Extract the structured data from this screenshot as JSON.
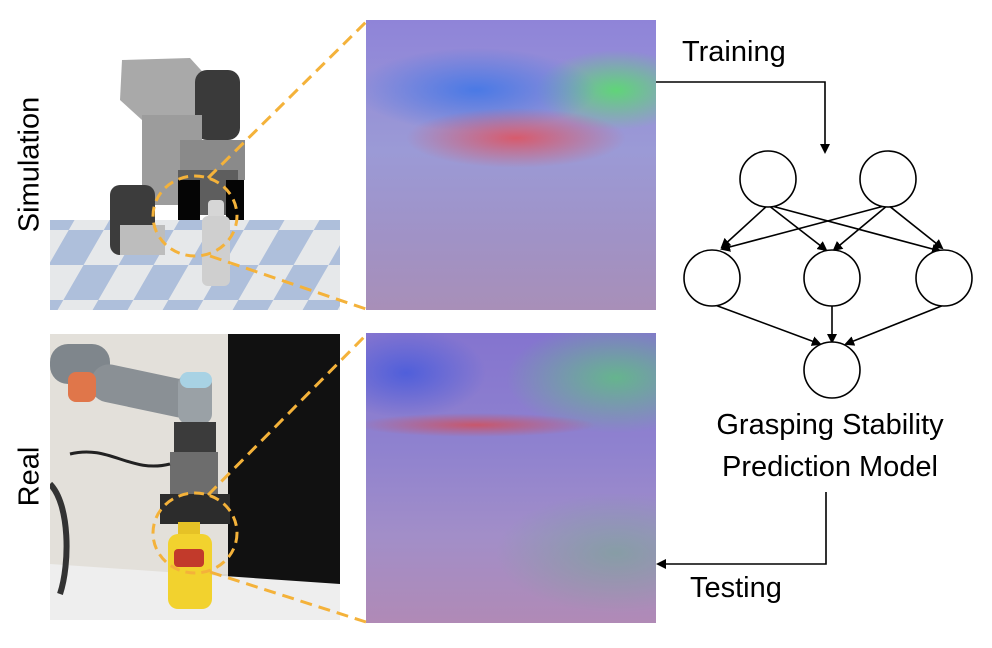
{
  "rows": {
    "simulation_label": "Simulation",
    "real_label": "Real"
  },
  "flow": {
    "training_label": "Training",
    "testing_label": "Testing"
  },
  "model": {
    "title_line1": "Grasping Stability",
    "title_line2": "Prediction Model",
    "network": {
      "input_nodes": 2,
      "hidden_nodes": 3,
      "output_nodes": 1
    }
  },
  "colors": {
    "highlight_dashes": "#f4b23a",
    "node_stroke": "#000000",
    "arrow": "#000000"
  }
}
